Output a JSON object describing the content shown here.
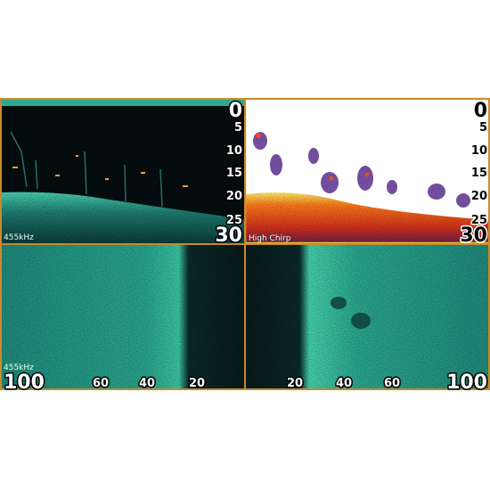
{
  "panels": [
    {
      "depth_scale": [
        0,
        5,
        10,
        15,
        20,
        25,
        30
      ],
      "frequency": "455kHz"
    },
    {
      "depth_scale": [
        0,
        5,
        10,
        15,
        20,
        25,
        30
      ],
      "mode": "High Chirp"
    },
    {
      "frequency": "455kHz",
      "range_scale": [
        100,
        60,
        40,
        20
      ]
    },
    {
      "range_scale": [
        20,
        40,
        60,
        100
      ]
    }
  ]
}
